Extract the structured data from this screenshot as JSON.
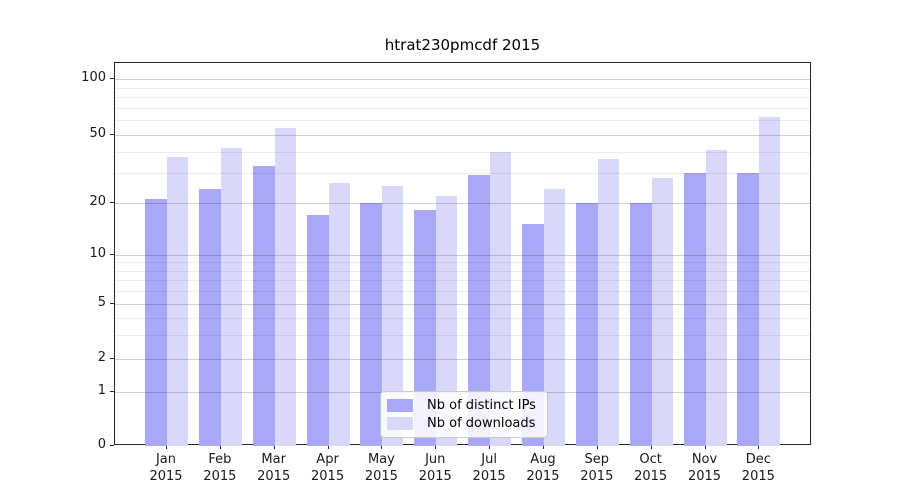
{
  "title": "htrat230pmcdf 2015",
  "colors": {
    "distinct_ips": "#a8a8f8",
    "downloads": "#d8d8fa",
    "grid_major": "#c8c8c8",
    "grid_minor": "#ececec",
    "axis": "#262626",
    "background": "#ffffff"
  },
  "chart_data": {
    "type": "bar",
    "title": "htrat230pmcdf 2015",
    "months": [
      "Jan",
      "Feb",
      "Mar",
      "Apr",
      "May",
      "Jun",
      "Jul",
      "Aug",
      "Sep",
      "Oct",
      "Nov",
      "Dec"
    ],
    "year": "2015",
    "series": [
      {
        "name": "Nb of distinct IPs",
        "color": "#a8a8f8",
        "values": [
          21,
          24,
          33,
          17,
          20,
          18,
          29,
          15,
          20,
          20,
          30,
          30
        ]
      },
      {
        "name": "Nb of downloads",
        "color": "#d8d8fa",
        "values": [
          37,
          42,
          55,
          26,
          25,
          22,
          40,
          24,
          36,
          28,
          41,
          63
        ]
      }
    ],
    "xlabel": "",
    "ylabel": "",
    "y_scale": "log-like (1-2-5 sequence with 0 baseline)",
    "y_tick_labels": [
      0,
      1,
      2,
      5,
      10,
      20,
      50,
      100
    ],
    "y_minor_gridlines": [
      3,
      4,
      6,
      7,
      8,
      9,
      30,
      40,
      60,
      70,
      80,
      90
    ],
    "ylim": [
      0,
      120
    ],
    "grid": true,
    "legend_position": "lower center",
    "legend_entries": [
      "Nb of distinct IPs",
      "Nb of downloads"
    ]
  }
}
